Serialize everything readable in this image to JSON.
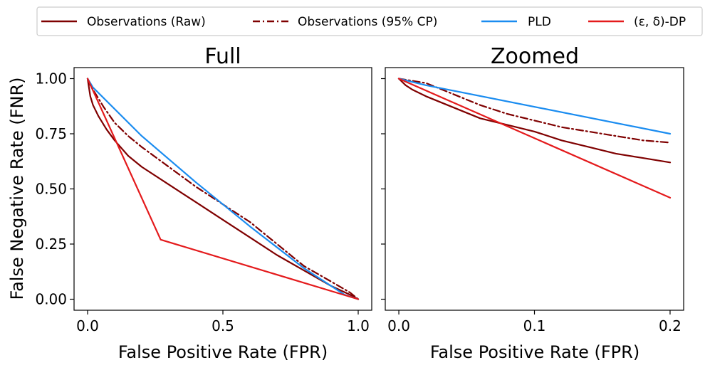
{
  "legend": [
    {
      "label": "Observations (Raw)",
      "color": "#7f0000",
      "dash": "solid"
    },
    {
      "label": "Observations (95% CP)",
      "color": "#7f0000",
      "dash": "dashdot"
    },
    {
      "label": "PLD",
      "color": "#1a8cf0",
      "dash": "solid"
    },
    {
      "label": "(ε, δ)-DP",
      "color": "#e41a1c",
      "dash": "solid"
    }
  ],
  "chart_data": [
    {
      "type": "line",
      "title": "Full",
      "xlabel": "False Positive Rate (FPR)",
      "ylabel": "False Negative Rate (FNR)",
      "xlim": [
        -0.05,
        1.05
      ],
      "ylim": [
        -0.05,
        1.05
      ],
      "xticks": [
        0.0,
        0.5,
        1.0
      ],
      "xticklabels": [
        "0.0",
        "0.5",
        "1.0"
      ],
      "yticks": [
        0.0,
        0.25,
        0.5,
        0.75,
        1.0
      ],
      "yticklabels": [
        "0.00",
        "0.25",
        "0.50",
        "0.75",
        "1.00"
      ],
      "series": [
        {
          "name": "Observations (Raw)",
          "color": "#7f0000",
          "dash": "solid",
          "x": [
            0.0,
            0.01,
            0.02,
            0.04,
            0.07,
            0.1,
            0.15,
            0.2,
            0.3,
            0.4,
            0.5,
            0.6,
            0.7,
            0.8,
            0.9,
            0.97,
            1.0
          ],
          "y": [
            1.0,
            0.92,
            0.88,
            0.83,
            0.77,
            0.72,
            0.65,
            0.6,
            0.52,
            0.44,
            0.36,
            0.28,
            0.2,
            0.13,
            0.06,
            0.02,
            0.0
          ]
        },
        {
          "name": "Observations (95% CP)",
          "color": "#7f0000",
          "dash": "dashdot",
          "x": [
            0.0,
            0.01,
            0.03,
            0.06,
            0.1,
            0.15,
            0.2,
            0.3,
            0.4,
            0.5,
            0.6,
            0.7,
            0.8,
            0.9,
            0.97,
            1.0
          ],
          "y": [
            1.0,
            0.97,
            0.93,
            0.87,
            0.8,
            0.74,
            0.69,
            0.6,
            0.51,
            0.43,
            0.35,
            0.25,
            0.15,
            0.08,
            0.03,
            0.0
          ]
        },
        {
          "name": "PLD",
          "color": "#1a8cf0",
          "dash": "solid",
          "x": [
            0.0,
            0.02,
            0.2,
            0.4,
            0.6,
            0.8,
            0.95,
            1.0
          ],
          "y": [
            1.0,
            0.96,
            0.74,
            0.53,
            0.33,
            0.14,
            0.02,
            0.0
          ]
        },
        {
          "name": "(ε, δ)-DP",
          "color": "#e41a1c",
          "dash": "solid",
          "x": [
            0.0,
            0.27,
            1.0
          ],
          "y": [
            1.0,
            0.27,
            0.0
          ]
        }
      ]
    },
    {
      "type": "line",
      "title": "Zoomed",
      "xlabel": "False Positive Rate (FPR)",
      "ylabel": "",
      "xlim": [
        -0.01,
        0.21
      ],
      "ylim": [
        -0.05,
        1.05
      ],
      "xticks": [
        0.0,
        0.1,
        0.2
      ],
      "xticklabels": [
        "0.0",
        "0.1",
        "0.2"
      ],
      "yticks": [
        0.0,
        0.25,
        0.5,
        0.75,
        1.0
      ],
      "yticklabels": [],
      "series": [
        {
          "name": "Observations (Raw)",
          "color": "#7f0000",
          "dash": "solid",
          "x": [
            0.0,
            0.005,
            0.01,
            0.02,
            0.04,
            0.06,
            0.08,
            0.1,
            0.12,
            0.14,
            0.16,
            0.18,
            0.2
          ],
          "y": [
            1.0,
            0.97,
            0.95,
            0.92,
            0.87,
            0.82,
            0.79,
            0.76,
            0.72,
            0.69,
            0.66,
            0.64,
            0.62
          ]
        },
        {
          "name": "Observations (95% CP)",
          "color": "#7f0000",
          "dash": "dashdot",
          "x": [
            0.0,
            0.01,
            0.02,
            0.04,
            0.06,
            0.08,
            0.1,
            0.12,
            0.14,
            0.16,
            0.18,
            0.2
          ],
          "y": [
            1.0,
            0.99,
            0.98,
            0.93,
            0.88,
            0.84,
            0.81,
            0.78,
            0.76,
            0.74,
            0.72,
            0.71
          ]
        },
        {
          "name": "PLD",
          "color": "#1a8cf0",
          "dash": "solid",
          "x": [
            0.0,
            0.02,
            0.2
          ],
          "y": [
            1.0,
            0.97,
            0.75
          ]
        },
        {
          "name": "(ε, δ)-DP",
          "color": "#e41a1c",
          "dash": "solid",
          "x": [
            0.0,
            0.2
          ],
          "y": [
            1.0,
            0.46
          ]
        }
      ]
    }
  ]
}
